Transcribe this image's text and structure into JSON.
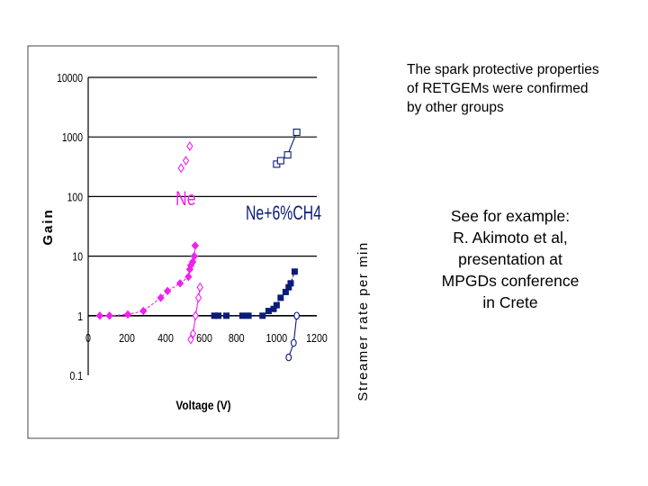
{
  "caption_top": {
    "lines": [
      "The spark protective properties",
      "of RETGEMs were confirmed",
      "by other groups"
    ]
  },
  "caption_example": {
    "lines": [
      "See for example:",
      "R. Akimoto et al,",
      "presentation at",
      "MPGDs conference",
      "in Crete"
    ]
  },
  "colors": {
    "magenta": "#ee22ee",
    "navy": "#0b1c78",
    "grid": "#000000",
    "frame": "#444444"
  },
  "chart_data": {
    "type": "scatter",
    "log_y": true,
    "grid": "horizontal",
    "ylabel": "Gain",
    "ylabel_right": "Streamer rate per min",
    "xlabel": "Voltage (V)",
    "ylim": [
      0.1,
      10000
    ],
    "y_ticks": [
      {
        "value": 10000,
        "label": "10000"
      },
      {
        "value": 1000,
        "label": "1000"
      },
      {
        "value": 100,
        "label": "100"
      },
      {
        "value": 10,
        "label": "10"
      },
      {
        "value": 1,
        "label": "1"
      },
      {
        "value": 0.1,
        "label": "0.1"
      }
    ],
    "x_axis_segments": [
      {
        "name": "Ne",
        "xlim": [
          0,
          600
        ],
        "ticks": [
          {
            "value": 0,
            "label": "0"
          },
          {
            "value": 200,
            "label": "200"
          },
          {
            "value": 400,
            "label": "400"
          },
          {
            "value": 600,
            "label": "600"
          }
        ]
      },
      {
        "name": "Ne+6%CH4",
        "xlim": [
          640,
          1200
        ],
        "ticks": [
          {
            "value": 800,
            "label": "800"
          },
          {
            "value": 1000,
            "label": "1000"
          },
          {
            "value": 1200,
            "label": "1200"
          }
        ]
      }
    ],
    "annotations": [
      "Ne",
      "Ne+6%CH4"
    ],
    "series": [
      {
        "segment": "Ne",
        "marker": "filled-diamond",
        "color": "#ee22ee",
        "line": "dashed",
        "x": [
          60,
          110,
          205,
          285,
          375,
          410,
          475,
          518,
          525,
          530,
          540,
          548,
          553
        ],
        "y": [
          1.0,
          1.0,
          1.05,
          1.2,
          2.0,
          2.6,
          3.5,
          4.5,
          6.0,
          7.0,
          8.0,
          10.0,
          15.0
        ]
      },
      {
        "segment": "Ne",
        "marker": "open-diamond",
        "color": "#ee22ee",
        "line": "solid",
        "x": [
          530,
          542,
          555,
          570,
          578
        ],
        "y": [
          0.4,
          0.5,
          1.0,
          2.0,
          3.0
        ]
      },
      {
        "segment": "Ne",
        "marker": "open-diamond",
        "color": "#ee22ee",
        "line": "none",
        "x": [
          480,
          505,
          525
        ],
        "y": [
          300,
          400,
          700
        ]
      },
      {
        "segment": "Ne+6%CH4",
        "marker": "filled-square",
        "color": "#0b1c78",
        "line": "dashed",
        "x": [
          690,
          710,
          750,
          830,
          860,
          930,
          960,
          985,
          1000,
          1020,
          1045,
          1060,
          1070,
          1090
        ],
        "y": [
          1.0,
          1.0,
          1.0,
          1.0,
          1.0,
          1.0,
          1.2,
          1.3,
          1.5,
          2.0,
          2.5,
          3.0,
          3.5,
          5.5
        ]
      },
      {
        "segment": "Ne+6%CH4",
        "marker": "open-circle",
        "color": "#0b1c78",
        "line": "solid",
        "x": [
          1060,
          1085,
          1100
        ],
        "y": [
          0.2,
          0.35,
          1.0
        ]
      },
      {
        "segment": "Ne+6%CH4",
        "marker": "open-square",
        "color": "#0b1c78",
        "line": "solid",
        "x": [
          1000,
          1020,
          1055,
          1100
        ],
        "y": [
          350,
          400,
          500,
          1200
        ]
      }
    ]
  }
}
